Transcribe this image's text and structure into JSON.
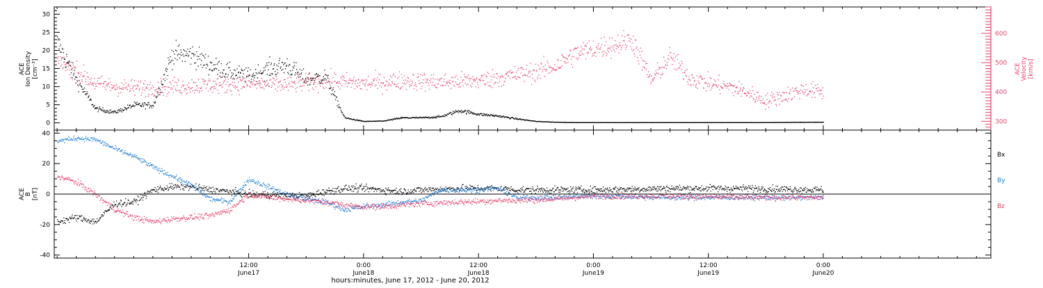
{
  "colors": {
    "black": "#000000",
    "pink": "#e8406a",
    "blue": "#1f7fd8"
  },
  "x_axis": {
    "title": "hours:minutes, June 17, 2012 - June 20, 2012",
    "range_hours": [
      -8.3,
      89.5
    ],
    "ticks": [
      {
        "h": 12,
        "top": "12:00",
        "bottom": "June17"
      },
      {
        "h": 24,
        "top": "0:00",
        "bottom": "June18"
      },
      {
        "h": 36,
        "top": "12:00",
        "bottom": "June18"
      },
      {
        "h": 48,
        "top": "0:00",
        "bottom": "June19"
      },
      {
        "h": 60,
        "top": "12:00",
        "bottom": "June19"
      },
      {
        "h": 72,
        "top": "0:00",
        "bottom": "June20"
      }
    ]
  },
  "chart_data": [
    {
      "type": "scatter",
      "panel": "top",
      "ylabel_left": [
        "ACE",
        "Ion Density",
        "[cm⁻³]"
      ],
      "ylabel_right": [
        "ACE",
        "Velocity",
        "[km/s]"
      ],
      "ylim_left": [
        -2,
        32
      ],
      "ylim_right": [
        270,
        690
      ],
      "left_ticks": [
        0,
        5,
        10,
        15,
        20,
        25,
        30
      ],
      "right_ticks": [
        300,
        400,
        500,
        600
      ],
      "series": [
        {
          "axis": "left",
          "color": "black",
          "noise": 0.12,
          "x": [
            -8,
            -6,
            -4,
            -2,
            0,
            2,
            4,
            6,
            8,
            10,
            12,
            14,
            16,
            18,
            20,
            21,
            22,
            24,
            26,
            28,
            30,
            32,
            34,
            36,
            38,
            40,
            42,
            44,
            46,
            48,
            50,
            55,
            60,
            65,
            72
          ],
          "y": [
            22,
            12,
            4,
            3,
            5,
            5,
            19,
            19,
            16,
            14,
            13,
            15,
            16,
            12,
            13,
            7,
            1.5,
            0.5,
            0.6,
            1.5,
            1.5,
            1.8,
            3.5,
            2.5,
            2.0,
            1.2,
            0.5,
            0.3,
            0.2,
            0.2,
            0.2,
            0.2,
            0.2,
            0.2,
            0.3
          ]
        },
        {
          "axis": "right",
          "color": "pink",
          "noise": 0.05,
          "x": [
            -8,
            -6,
            -4,
            -2,
            0,
            4,
            8,
            12,
            16,
            20,
            24,
            28,
            32,
            36,
            40,
            42,
            44,
            46,
            48,
            50,
            52,
            54,
            56,
            58,
            60,
            62,
            64,
            66,
            68,
            70,
            72
          ],
          "y": [
            510,
            470,
            430,
            420,
            415,
            420,
            425,
            430,
            425,
            440,
            430,
            440,
            435,
            440,
            460,
            470,
            490,
            530,
            550,
            560,
            580,
            440,
            520,
            450,
            430,
            420,
            400,
            370,
            390,
            410,
            400
          ]
        }
      ]
    },
    {
      "type": "scatter",
      "panel": "bottom",
      "ylabel_left": [
        "ACE",
        "B",
        "[nT]"
      ],
      "ylim": [
        -42,
        42
      ],
      "ticks": [
        -40,
        -20,
        0,
        20,
        40
      ],
      "legend": [
        "Bx",
        "By",
        "Bz"
      ],
      "series": [
        {
          "name": "Bx",
          "color": "black",
          "noise": 1.6,
          "x": [
            -8,
            -6,
            -4,
            -2,
            0,
            2,
            4,
            6,
            8,
            10,
            12,
            14,
            16,
            18,
            20,
            22,
            24,
            26,
            28,
            30,
            34,
            38,
            40,
            44,
            48,
            56,
            64,
            72
          ],
          "y": [
            -18,
            -15,
            -18,
            -6,
            -5,
            3,
            5,
            5,
            3,
            2,
            0,
            0,
            -1,
            -1,
            2,
            4,
            4,
            3,
            2,
            3,
            4,
            4,
            3,
            3,
            3,
            4,
            4,
            3
          ]
        },
        {
          "name": "By",
          "color": "blue",
          "noise": 1.2,
          "x": [
            -8,
            -6,
            -4,
            -2,
            0,
            2,
            4,
            6,
            8,
            10,
            12,
            14,
            16,
            18,
            20,
            22,
            24,
            26,
            28,
            30,
            32,
            34,
            36,
            38,
            40,
            44,
            48,
            56,
            64,
            72
          ],
          "y": [
            35,
            37,
            36,
            30,
            25,
            18,
            12,
            6,
            -3,
            -5,
            10,
            5,
            0,
            -3,
            -5,
            -10,
            -8,
            -7,
            -5,
            -4,
            3,
            3,
            3,
            4,
            -2,
            -2,
            -1,
            -2,
            -2,
            -2
          ]
        },
        {
          "name": "Bz",
          "color": "pink",
          "noise": 1.4,
          "x": [
            -8,
            -6,
            -4,
            -2,
            0,
            2,
            4,
            6,
            8,
            10,
            12,
            14,
            16,
            18,
            20,
            22,
            24,
            26,
            28,
            30,
            34,
            38,
            40,
            44,
            48,
            56,
            64,
            72
          ],
          "y": [
            12,
            8,
            0,
            -10,
            -15,
            -18,
            -16,
            -15,
            -14,
            -10,
            0,
            -2,
            -3,
            -4,
            -5,
            -7,
            -8,
            -8,
            -7,
            -6,
            -5,
            -4,
            -4,
            -3,
            -1,
            -1,
            -2,
            -2
          ]
        }
      ]
    }
  ]
}
